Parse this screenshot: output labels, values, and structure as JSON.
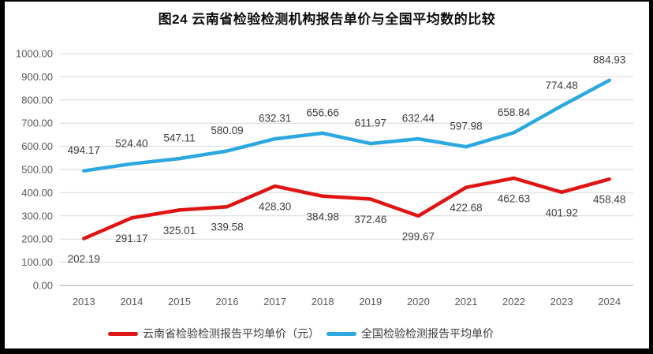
{
  "chart_data": {
    "type": "line",
    "title": "图24 云南省检验检测机构报告单价与全国平均数的比较",
    "categories": [
      "2013",
      "2014",
      "2015",
      "2016",
      "2017",
      "2018",
      "2019",
      "2020",
      "2021",
      "2022",
      "2023",
      "2024"
    ],
    "series": [
      {
        "id": "yunnan",
        "name": "云南省检验检测报告平均单价（元）",
        "color": "#e01513",
        "label_position": "below",
        "values": [
          202.19,
          291.17,
          325.01,
          339.58,
          428.3,
          384.98,
          372.46,
          299.67,
          422.68,
          462.63,
          401.92,
          458.48
        ]
      },
      {
        "id": "national",
        "name": "全国检验检测报告平均单价",
        "color": "#2ca8e0",
        "label_position": "above",
        "values": [
          494.17,
          524.4,
          547.11,
          580.09,
          632.31,
          656.66,
          611.97,
          632.44,
          597.98,
          658.84,
          774.48,
          884.93
        ]
      }
    ],
    "ylim": [
      0,
      1000
    ],
    "ystep": 100,
    "y_tick_labels": [
      "0.00",
      "100.00",
      "200.00",
      "300.00",
      "400.00",
      "500.00",
      "600.00",
      "700.00",
      "800.00",
      "900.00",
      "1000.00"
    ],
    "grid": true,
    "legend_position": "bottom",
    "value_label_format": "0.00",
    "colors": {
      "gridline": "#d9d9d9",
      "axis_line": "#c2c2c2",
      "tick_text": "#595959",
      "value_text": "#3d3d3d",
      "frame_border": "#000000",
      "background": "#ffffff"
    }
  }
}
